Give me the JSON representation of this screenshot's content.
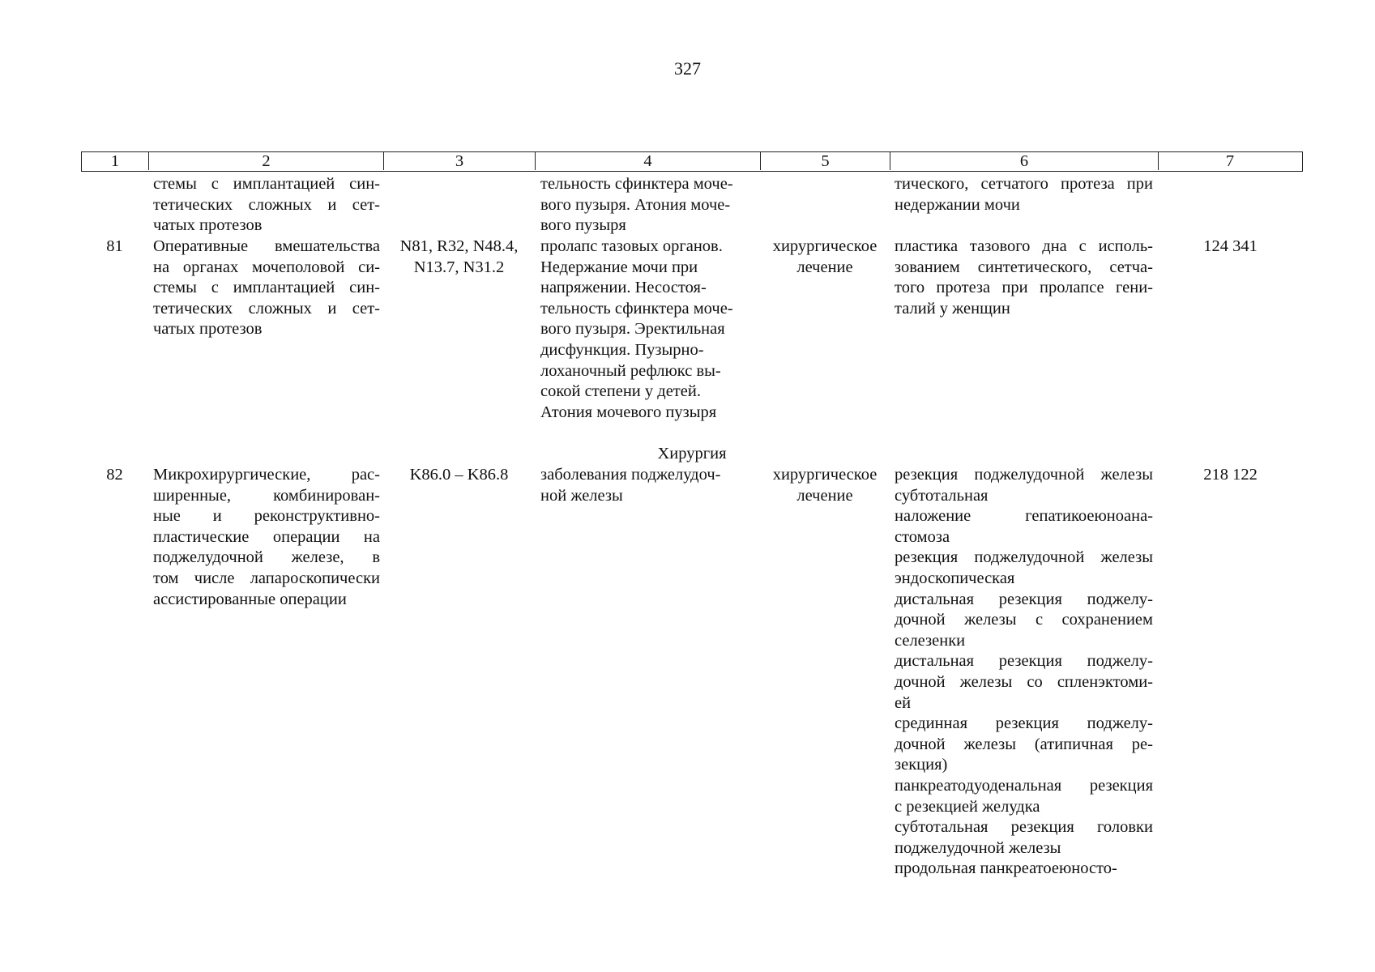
{
  "page_number": "327",
  "header": [
    "1",
    "2",
    "3",
    "4",
    "5",
    "6",
    "7"
  ],
  "continuation": {
    "col2": [
      [
        "стемы с имплантацией син-",
        "тетических сложных и сет-",
        "чатых протезов"
      ]
    ],
    "col4": [
      [
        "тельность сфинктера моче-",
        "вого пузыря. Атония моче-",
        "вого пузыря"
      ]
    ],
    "col6": [
      [
        "тического, сетчатого протеза при",
        "недержании мочи"
      ]
    ]
  },
  "section_heading": "Хирургия",
  "rows": [
    {
      "number": "81",
      "name": [
        [
          "Оперативные вмешательства",
          "на органах мочеполовой си-",
          "стемы с имплантацией син-",
          "тетических сложных и сет-",
          "чатых протезов"
        ]
      ],
      "codes": [
        [
          "N81, R32, N48.4,",
          "N13.7, N31.2"
        ]
      ],
      "diagnosis": [
        [
          "пролапс тазовых органов.",
          "Недержание мочи при",
          "напряжении. Несостоя-",
          "тельность сфинктера моче-",
          "вого пузыря. Эректильная",
          "дисфункция. Пузырно-",
          "лоханочный рефлюкс вы-",
          "сокой степени у детей.",
          "Атония мочевого пузыря"
        ]
      ],
      "treatment": [
        [
          "хирургическое",
          "лечение"
        ]
      ],
      "methods": [
        [
          "пластика тазового дна с исполь-",
          "зованием синтетического, сетча-",
          "того протеза при пролапсе гени-",
          "талий у женщин"
        ]
      ],
      "cost": "124 341"
    },
    {
      "number": "82",
      "name": [
        [
          "Микрохирургические, рас-",
          "ширенные, комбинирован-",
          "ные и реконструктивно-",
          "пластические операции на",
          "поджелудочной железе, в",
          "том числе лапароскопически",
          "ассистированные операции"
        ]
      ],
      "codes": [
        [
          "K86.0 – K86.8"
        ]
      ],
      "diagnosis": [
        [
          "заболевания поджелудоч-",
          "ной железы"
        ]
      ],
      "treatment": [
        [
          "хирургическое",
          "лечение"
        ]
      ],
      "methods": [
        [
          "резекция поджелудочной железы",
          "субтотальная"
        ],
        [
          "наложение гепатикоеюноана-",
          "стомоза"
        ],
        [
          "резекция поджелудочной железы",
          "эндоскопическая"
        ],
        [
          "дистальная резекция поджелу-",
          "дочной железы с сохранением",
          "селезенки"
        ],
        [
          "дистальная резекция поджелу-",
          "дочной железы со спленэктоми-",
          "ей"
        ],
        [
          "срединная резекция поджелу-",
          "дочной железы (атипичная ре-",
          "зекция)"
        ],
        [
          "панкреатодуоденальная резекция",
          "с резекцией желудка"
        ],
        [
          "субтотальная резекция головки",
          "поджелудочной железы"
        ],
        [
          "продольная панкреатоеюносто-"
        ]
      ],
      "cost": "218 122"
    }
  ]
}
